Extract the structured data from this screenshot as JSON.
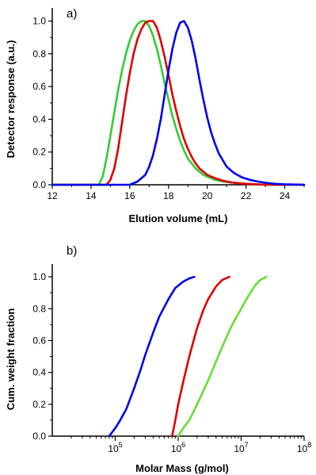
{
  "chart_data": [
    {
      "type": "line",
      "panel_label": "a)",
      "xlabel": "Elution volume (mL)",
      "ylabel": "Detector response (a.u.)",
      "xlim": [
        12,
        25
      ],
      "ylim": [
        0,
        1.08
      ],
      "xticks": [
        "12",
        "14",
        "16",
        "18",
        "20",
        "22",
        "24"
      ],
      "yticks": [
        "0.0",
        "0.2",
        "0.4",
        "0.6",
        "0.8",
        "1.0"
      ],
      "grid": false,
      "legend": "none",
      "series": [
        {
          "color": "#33cc33",
          "x": [
            12.0,
            14.4,
            14.6,
            14.8,
            15.0,
            15.2,
            15.4,
            15.6,
            15.8,
            16.0,
            16.2,
            16.4,
            16.6,
            16.8,
            17.0,
            17.2,
            17.4,
            17.6,
            17.8,
            18.0,
            18.2,
            18.4,
            18.6,
            18.8,
            19.0,
            19.2,
            19.4,
            19.6,
            19.8,
            20.0,
            20.4,
            20.8,
            21.2,
            21.6,
            22.0,
            22.5,
            23.0,
            25.0
          ],
          "y": [
            0.0,
            0.0,
            0.05,
            0.16,
            0.3,
            0.44,
            0.58,
            0.7,
            0.8,
            0.88,
            0.94,
            0.98,
            1.0,
            1.0,
            0.97,
            0.91,
            0.83,
            0.73,
            0.62,
            0.52,
            0.42,
            0.34,
            0.27,
            0.21,
            0.16,
            0.13,
            0.1,
            0.08,
            0.06,
            0.05,
            0.03,
            0.02,
            0.015,
            0.01,
            0.006,
            0.003,
            0.0,
            0.0
          ]
        },
        {
          "color": "#dd0000",
          "x": [
            12.0,
            14.8,
            15.0,
            15.2,
            15.4,
            15.6,
            15.8,
            16.0,
            16.2,
            16.4,
            16.6,
            16.8,
            17.0,
            17.2,
            17.4,
            17.6,
            17.8,
            18.0,
            18.2,
            18.4,
            18.6,
            18.8,
            19.0,
            19.2,
            19.4,
            19.6,
            19.8,
            20.0,
            20.4,
            20.8,
            21.2,
            21.6,
            22.0,
            22.5,
            23.0,
            25.0
          ],
          "y": [
            0.0,
            0.0,
            0.03,
            0.1,
            0.22,
            0.38,
            0.54,
            0.68,
            0.8,
            0.89,
            0.95,
            0.99,
            1.0,
            1.0,
            0.96,
            0.88,
            0.78,
            0.67,
            0.55,
            0.45,
            0.36,
            0.28,
            0.22,
            0.17,
            0.13,
            0.1,
            0.08,
            0.06,
            0.04,
            0.025,
            0.015,
            0.01,
            0.006,
            0.003,
            0.0,
            0.0
          ]
        },
        {
          "color": "#0000ee",
          "x": [
            12.0,
            16.0,
            16.4,
            16.8,
            17.0,
            17.2,
            17.4,
            17.6,
            17.8,
            18.0,
            18.2,
            18.4,
            18.6,
            18.8,
            19.0,
            19.2,
            19.4,
            19.6,
            19.8,
            20.0,
            20.2,
            20.4,
            20.6,
            20.8,
            21.0,
            21.4,
            21.8,
            22.2,
            22.6,
            23.0,
            23.5,
            24.0,
            25.0
          ],
          "y": [
            0.0,
            0.0,
            0.02,
            0.06,
            0.11,
            0.18,
            0.28,
            0.4,
            0.55,
            0.7,
            0.83,
            0.93,
            0.99,
            1.0,
            0.96,
            0.88,
            0.77,
            0.64,
            0.52,
            0.41,
            0.32,
            0.25,
            0.19,
            0.15,
            0.11,
            0.07,
            0.045,
            0.03,
            0.02,
            0.012,
            0.006,
            0.003,
            0.0
          ]
        }
      ]
    },
    {
      "type": "line",
      "panel_label": "b)",
      "xlabel": "Molar Mass (g/mol)",
      "ylabel": "Cum. weight fraction",
      "xscale": "log",
      "xlim": [
        10000,
        100000000
      ],
      "ylim": [
        0,
        1.08
      ],
      "xticks": [
        {
          "value": 100000,
          "base": "10",
          "exp": "5"
        },
        {
          "value": 1000000,
          "base": "10",
          "exp": "6"
        },
        {
          "value": 10000000,
          "base": "10",
          "exp": "7"
        },
        {
          "value": 100000000,
          "base": "10",
          "exp": "8"
        }
      ],
      "yticks": [
        "0.0",
        "0.2",
        "0.4",
        "0.6",
        "0.8",
        "1.0"
      ],
      "grid": false,
      "legend": "none",
      "series": [
        {
          "color": "#0000ee",
          "x": [
            80000,
            100000,
            120000,
            150000,
            200000,
            250000,
            300000,
            400000,
            500000,
            700000,
            900000,
            1200000,
            1500000,
            1800000
          ],
          "y": [
            0.0,
            0.05,
            0.1,
            0.17,
            0.3,
            0.41,
            0.51,
            0.65,
            0.75,
            0.86,
            0.93,
            0.97,
            0.99,
            1.0
          ]
        },
        {
          "color": "#dd0000",
          "x": [
            800000,
            900000,
            1000000,
            1200000,
            1500000,
            2000000,
            2500000,
            3000000,
            4000000,
            5000000,
            6500000
          ],
          "y": [
            0.0,
            0.1,
            0.2,
            0.34,
            0.5,
            0.68,
            0.79,
            0.86,
            0.94,
            0.98,
            1.0
          ]
        },
        {
          "color": "#66dd33",
          "x": [
            1000000,
            1200000,
            1500000,
            2000000,
            3000000,
            4000000,
            5000000,
            7000000,
            10000000,
            13000000,
            17000000,
            20000000,
            25000000
          ],
          "y": [
            0.0,
            0.05,
            0.1,
            0.2,
            0.35,
            0.47,
            0.56,
            0.69,
            0.8,
            0.88,
            0.95,
            0.98,
            1.0
          ]
        }
      ]
    }
  ]
}
